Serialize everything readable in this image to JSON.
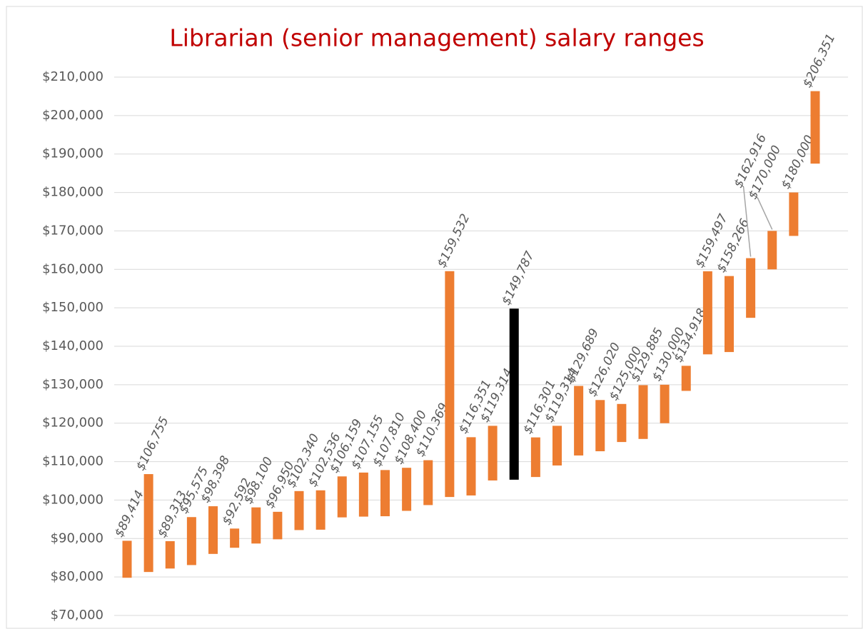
{
  "chart_data": {
    "type": "floating-bar",
    "title": "Librarian (senior management) salary ranges",
    "values": [
      89414,
      106755,
      89313,
      95575,
      98398,
      92592,
      98100,
      96950,
      102340,
      102536,
      106159,
      107155,
      107810,
      108400,
      110369,
      159532,
      116351,
      119314,
      149787,
      116301,
      119314,
      129689,
      126020,
      125000,
      129885,
      130000,
      134918,
      159497,
      158266,
      162916,
      170000,
      180000,
      206351
    ],
    "value_labels": [
      "$89,414",
      "$106,755",
      "$89,313",
      "$95,575",
      "$98,398",
      "$92,592",
      "$98,100",
      "$96,950",
      "$102,340",
      "$102,536",
      "$106,159",
      "$107,155",
      "$107,810",
      "$108,400",
      "$110,369",
      "$159,532",
      "$116,351",
      "$119,314",
      "$149,787",
      "$116,301",
      "$119,314",
      "$129,689",
      "$126,020",
      "$125,000",
      "$129,885",
      "$130,000",
      "$134,918",
      "$159,497",
      "$158,266",
      "$162,916",
      "$170,000",
      "$180,000",
      "$206,351"
    ],
    "lows": [
      79800,
      81300,
      82200,
      83100,
      86000,
      87600,
      88700,
      89800,
      92200,
      92300,
      95500,
      95700,
      95800,
      97200,
      98700,
      100800,
      101200,
      105100,
      105300,
      106000,
      109000,
      111600,
      112700,
      115100,
      115900,
      120000,
      128400,
      137900,
      138500,
      147400,
      160000,
      168700,
      187500
    ],
    "colors": [
      "#ed7d31",
      "#ed7d31",
      "#ed7d31",
      "#ed7d31",
      "#ed7d31",
      "#ed7d31",
      "#ed7d31",
      "#ed7d31",
      "#ed7d31",
      "#ed7d31",
      "#ed7d31",
      "#ed7d31",
      "#ed7d31",
      "#ed7d31",
      "#ed7d31",
      "#ed7d31",
      "#ed7d31",
      "#ed7d31",
      "#000000",
      "#ed7d31",
      "#ed7d31",
      "#ed7d31",
      "#ed7d31",
      "#ed7d31",
      "#ed7d31",
      "#ed7d31",
      "#ed7d31",
      "#ed7d31",
      "#ed7d31",
      "#ed7d31",
      "#ed7d31",
      "#ed7d31",
      "#ed7d31"
    ],
    "ylim": [
      70000,
      210000
    ],
    "yticks": [
      {
        "value": 70000,
        "label": "$70,000"
      },
      {
        "value": 80000,
        "label": "$80,000"
      },
      {
        "value": 90000,
        "label": "$90,000"
      },
      {
        "value": 100000,
        "label": "$100,000"
      },
      {
        "value": 110000,
        "label": "$110,000"
      },
      {
        "value": 120000,
        "label": "$120,000"
      },
      {
        "value": 130000,
        "label": "$130,000"
      },
      {
        "value": 140000,
        "label": "$140,000"
      },
      {
        "value": 150000,
        "label": "$150,000"
      },
      {
        "value": 160000,
        "label": "$160,000"
      },
      {
        "value": 170000,
        "label": "$170,000"
      },
      {
        "value": 180000,
        "label": "$180,000"
      },
      {
        "value": 190000,
        "label": "$190,000"
      },
      {
        "value": 200000,
        "label": "$200,000"
      },
      {
        "value": 210000,
        "label": "$210,000"
      }
    ],
    "grid": true
  }
}
